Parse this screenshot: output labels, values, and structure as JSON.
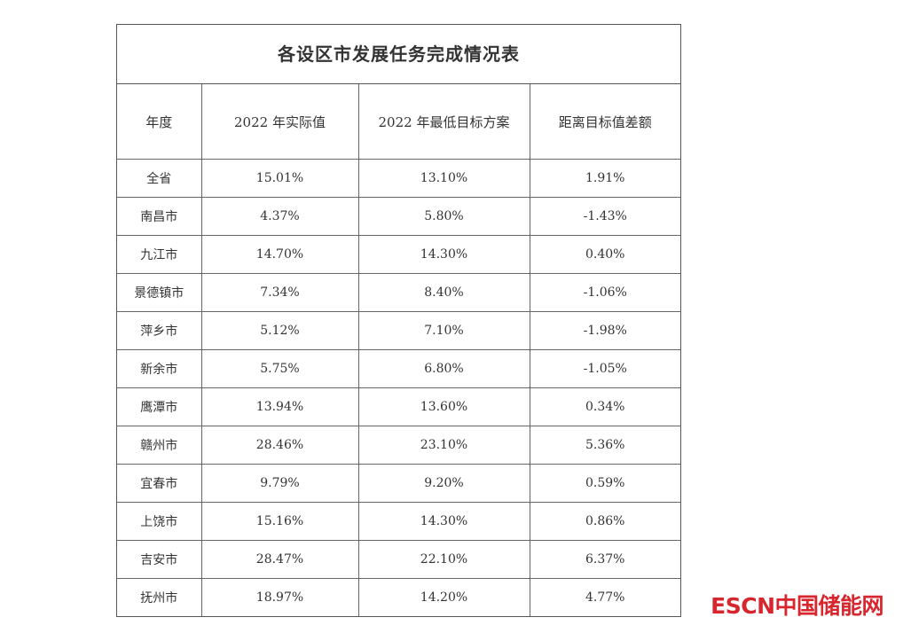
{
  "table": {
    "title": "各设区市发展任务完成情况表",
    "header": [
      "年度",
      "2022 年实际值",
      "2022 年最低目标方案",
      "距离目标值差额"
    ],
    "rows": [
      [
        "全省",
        "15.01%",
        "13.10%",
        "1.91%"
      ],
      [
        "南昌市",
        "4.37%",
        "5.80%",
        "-1.43%"
      ],
      [
        "九江市",
        "14.70%",
        "14.30%",
        "0.40%"
      ],
      [
        "景德镇市",
        "7.34%",
        "8.40%",
        "-1.06%"
      ],
      [
        "萍乡市",
        "5.12%",
        "7.10%",
        "-1.98%"
      ],
      [
        "新余市",
        "5.75%",
        "6.80%",
        "-1.05%"
      ],
      [
        "鹰潭市",
        "13.94%",
        "13.60%",
        "0.34%"
      ],
      [
        "赣州市",
        "28.46%",
        "23.10%",
        "5.36%"
      ],
      [
        "宜春市",
        "9.79%",
        "9.20%",
        "0.59%"
      ],
      [
        "上饶市",
        "15.16%",
        "14.30%",
        "0.86%"
      ],
      [
        "吉安市",
        "28.47%",
        "22.10%",
        "6.37%"
      ],
      [
        "抚州市",
        "18.97%",
        "14.20%",
        "4.77%"
      ]
    ]
  },
  "watermark": "ESCN中国储能网"
}
